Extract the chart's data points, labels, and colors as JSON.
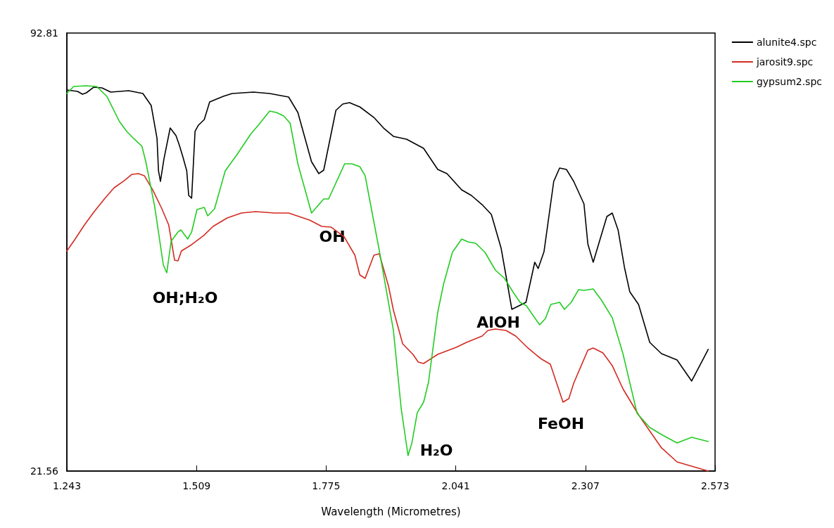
{
  "chart_data": {
    "type": "line",
    "xlabel": "Wavelength (Micrometres)",
    "xlim": [
      1.243,
      2.573
    ],
    "xticks": [
      1.243,
      1.509,
      1.775,
      2.041,
      2.307,
      2.573
    ],
    "ylim": [
      21.56,
      92.81
    ],
    "yticks": [
      21.56,
      92.81
    ],
    "grid": false,
    "legend": "top right",
    "marker": "none",
    "line_style": "solid",
    "annotations": [
      "OH;H₂O",
      "OH",
      "H₂O",
      "AlOH",
      "FeOH"
    ],
    "series": [
      {
        "name": "alunite4.spc",
        "color": "#000000",
        "x": [
          1.243,
          1.265,
          1.275,
          1.283,
          1.298,
          1.315,
          1.333,
          1.37,
          1.399,
          1.416,
          1.428,
          1.431,
          1.435,
          1.442,
          1.455,
          1.467,
          1.474,
          1.481,
          1.489,
          1.493,
          1.499,
          1.506,
          1.513,
          1.525,
          1.536,
          1.564,
          1.582,
          1.626,
          1.659,
          1.698,
          1.717,
          1.745,
          1.76,
          1.77,
          1.795,
          1.809,
          1.823,
          1.844,
          1.873,
          1.894,
          1.913,
          1.94,
          1.975,
          2.004,
          2.023,
          2.053,
          2.073,
          2.095,
          2.114,
          2.134,
          2.146,
          2.156,
          2.185,
          2.203,
          2.21,
          2.222,
          2.242,
          2.254,
          2.268,
          2.283,
          2.304,
          2.312,
          2.323,
          2.351,
          2.362,
          2.374,
          2.387,
          2.398,
          2.416,
          2.439,
          2.463,
          2.495,
          2.525,
          2.559
        ],
        "values": [
          83.55,
          83.32,
          82.86,
          83.09,
          84.0,
          83.89,
          83.2,
          83.43,
          82.98,
          81.03,
          75.66,
          70.4,
          68.68,
          72.23,
          77.37,
          76.11,
          74.51,
          72.68,
          70.4,
          66.39,
          65.94,
          76.8,
          77.83,
          78.74,
          81.6,
          82.52,
          82.98,
          83.2,
          82.98,
          82.4,
          79.89,
          71.88,
          69.94,
          70.51,
          80.23,
          81.26,
          81.49,
          80.8,
          79.08,
          77.26,
          76.0,
          75.54,
          74.06,
          70.62,
          69.94,
          67.31,
          66.39,
          64.9,
          63.3,
          57.82,
          52.44,
          47.87,
          49.01,
          55.53,
          54.5,
          57.24,
          68.68,
          70.85,
          70.62,
          68.68,
          65.02,
          58.5,
          55.53,
          62.96,
          63.53,
          60.79,
          54.73,
          50.73,
          48.67,
          42.49,
          40.66,
          39.63,
          36.2,
          41.35
        ]
      },
      {
        "name": "jarosit9.spc",
        "color": "#d42a20",
        "x": [
          1.243,
          1.26,
          1.279,
          1.298,
          1.32,
          1.34,
          1.361,
          1.376,
          1.39,
          1.402,
          1.419,
          1.438,
          1.452,
          1.464,
          1.471,
          1.478,
          1.499,
          1.524,
          1.543,
          1.572,
          1.601,
          1.63,
          1.669,
          1.698,
          1.741,
          1.766,
          1.785,
          1.812,
          1.834,
          1.844,
          1.855,
          1.873,
          1.884,
          1.903,
          1.913,
          1.932,
          1.953,
          1.964,
          1.975,
          2.004,
          2.042,
          2.063,
          2.095,
          2.107,
          2.122,
          2.144,
          2.164,
          2.189,
          2.215,
          2.235,
          2.261,
          2.273,
          2.283,
          2.312,
          2.323,
          2.343,
          2.362,
          2.384,
          2.416,
          2.463,
          2.495,
          2.559
        ],
        "values": [
          57.36,
          59.3,
          61.59,
          63.65,
          65.82,
          67.65,
          68.8,
          69.82,
          69.94,
          69.6,
          67.31,
          64.22,
          61.59,
          55.87,
          55.76,
          57.36,
          58.39,
          59.88,
          61.36,
          62.73,
          63.53,
          63.76,
          63.53,
          63.53,
          62.39,
          61.36,
          61.25,
          59.65,
          56.67,
          53.47,
          52.9,
          56.67,
          56.9,
          51.64,
          47.75,
          42.26,
          40.55,
          39.29,
          39.06,
          40.55,
          41.69,
          42.49,
          43.52,
          44.43,
          44.66,
          44.43,
          43.52,
          41.58,
          39.86,
          38.95,
          32.77,
          33.34,
          35.86,
          41.23,
          41.58,
          40.78,
          38.72,
          34.94,
          30.71,
          25.34,
          23.05,
          21.56
        ]
      },
      {
        "name": "gypsum2.spc",
        "color": "#22cc22",
        "x": [
          1.243,
          1.257,
          1.282,
          1.304,
          1.325,
          1.351,
          1.366,
          1.38,
          1.397,
          1.405,
          1.423,
          1.441,
          1.448,
          1.457,
          1.471,
          1.477,
          1.491,
          1.499,
          1.51,
          1.525,
          1.532,
          1.546,
          1.568,
          1.592,
          1.621,
          1.636,
          1.659,
          1.673,
          1.688,
          1.701,
          1.717,
          1.745,
          1.77,
          1.78,
          1.813,
          1.828,
          1.844,
          1.855,
          1.884,
          1.913,
          1.929,
          1.943,
          1.951,
          1.962,
          1.975,
          1.985,
          2.004,
          2.016,
          2.034,
          2.053,
          2.066,
          2.082,
          2.101,
          2.122,
          2.141,
          2.16,
          2.173,
          2.186,
          2.213,
          2.225,
          2.236,
          2.254,
          2.264,
          2.278,
          2.293,
          2.304,
          2.323,
          2.34,
          2.362,
          2.384,
          2.413,
          2.439,
          2.463,
          2.495,
          2.525,
          2.559
        ],
        "values": [
          82.98,
          84.12,
          84.23,
          84.12,
          82.52,
          78.4,
          76.8,
          75.66,
          74.4,
          71.88,
          64.68,
          55.07,
          53.81,
          58.96,
          60.45,
          60.79,
          59.3,
          60.45,
          64.11,
          64.45,
          63.08,
          64.22,
          70.4,
          73.03,
          76.46,
          77.83,
          80.12,
          79.89,
          79.32,
          78.17,
          71.54,
          63.53,
          65.82,
          65.82,
          71.54,
          71.54,
          71.08,
          69.6,
          57.47,
          44.44,
          31.74,
          24.08,
          26.14,
          31.06,
          32.77,
          35.97,
          47.41,
          51.98,
          57.13,
          59.3,
          58.85,
          58.62,
          57.13,
          54.27,
          52.9,
          50.5,
          49.01,
          48.44,
          45.35,
          46.38,
          48.67,
          49.01,
          47.87,
          49.01,
          51.07,
          50.95,
          51.18,
          49.35,
          46.5,
          40.66,
          30.94,
          28.65,
          27.51,
          26.14,
          27.05,
          26.37
        ]
      }
    ]
  }
}
